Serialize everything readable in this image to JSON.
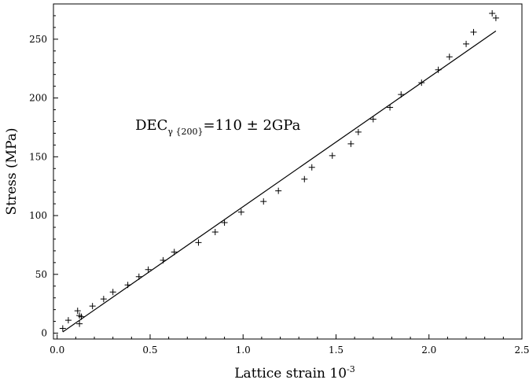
{
  "chart_data": {
    "type": "scatter",
    "title": "",
    "xlabel": "Lattice strain 10",
    "xlabel_exponent": "-3",
    "ylabel": "Stress (MPa)",
    "xlim": [
      -0.02,
      2.5
    ],
    "ylim": [
      -5,
      280
    ],
    "x_ticks": [
      0.0,
      0.5,
      1.0,
      1.5,
      2.0,
      2.5
    ],
    "x_tick_labels": [
      "0.0",
      "0.5",
      "1.0",
      "1.5",
      "2.0",
      "2.5"
    ],
    "y_ticks": [
      0,
      50,
      100,
      150,
      200,
      250
    ],
    "y_tick_labels": [
      "0",
      "50",
      "100",
      "150",
      "200",
      "250"
    ],
    "grid": false,
    "legend": "none",
    "marker": "plus",
    "series": [
      {
        "x": [
          0.03,
          0.06,
          0.11,
          0.12,
          0.12,
          0.13,
          0.19,
          0.25,
          0.3,
          0.38,
          0.44,
          0.49,
          0.57,
          0.63,
          0.76,
          0.85,
          0.9,
          0.99,
          1.11,
          1.19,
          1.33,
          1.37,
          1.48,
          1.58,
          1.62,
          1.7,
          1.79,
          1.85,
          1.96,
          2.05,
          2.11,
          2.2,
          2.24,
          2.34,
          2.36
        ],
        "values": [
          4,
          11,
          19,
          8,
          15,
          14,
          23,
          29,
          35,
          41,
          48,
          54,
          62,
          69,
          77,
          86,
          94,
          103,
          112,
          121,
          131,
          141,
          151,
          161,
          171,
          182,
          192,
          203,
          213,
          224,
          235,
          246,
          256,
          272,
          268
        ]
      }
    ],
    "fit_line": {
      "x": [
        0.03,
        2.36
      ],
      "y": [
        1,
        257
      ]
    },
    "annotation": {
      "main": "DEC",
      "subscript": "γ {200}",
      "value": "=110 ± 2GPa",
      "x": 0.42,
      "y": 173
    }
  }
}
